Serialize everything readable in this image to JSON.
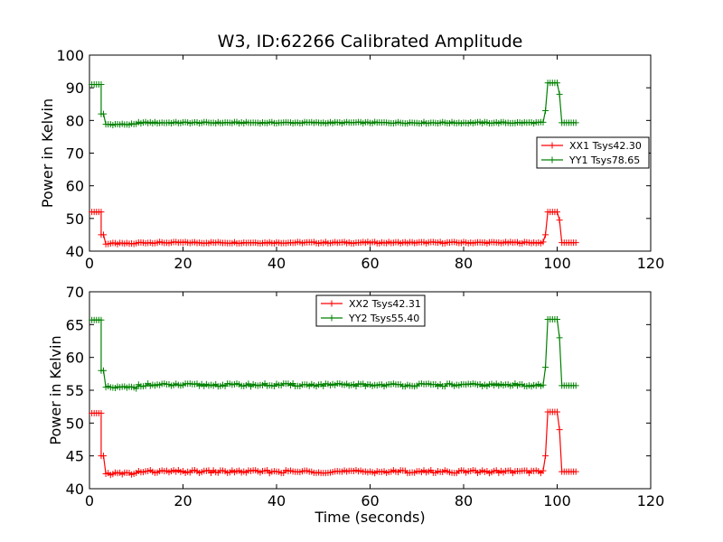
{
  "figure": {
    "title": "W3, ID:62266 Calibrated Amplitude"
  },
  "colors": {
    "xx": "#ff0000",
    "yy": "#008000",
    "axes": "#000000",
    "background": "#ffffff"
  },
  "chart_data": [
    {
      "type": "line",
      "title": "W3, ID:62266 Calibrated Amplitude",
      "xlabel": "",
      "ylabel": "Power in Kelvin",
      "xlim": [
        0,
        120
      ],
      "ylim": [
        40,
        100
      ],
      "xticks": [
        "0",
        "20",
        "40",
        "60",
        "80",
        "100",
        "120"
      ],
      "yticks": [
        "40",
        "50",
        "60",
        "70",
        "80",
        "90",
        "100"
      ],
      "grid": false,
      "marker": "+",
      "legend": {
        "placement": "center-right",
        "entries": [
          "XX1 Tsys42.30",
          "YY1 Tsys78.65"
        ]
      },
      "series": [
        {
          "name": "XX1 Tsys42.30",
          "color": "#ff0000",
          "segments": [
            {
              "x_start": 0.5,
              "x_end": 2.5,
              "value": 52
            },
            {
              "x_start": 2.5,
              "x_end": 3.0,
              "value": 45
            },
            {
              "x_start": 3.5,
              "x_end": 10,
              "value": 42.3
            },
            {
              "x_start": 10.5,
              "x_end": 97,
              "value": 42.6
            },
            {
              "x_start": 97.5,
              "x_end": 97.5,
              "value": 45
            },
            {
              "x_start": 98,
              "x_end": 100,
              "value": 52
            },
            {
              "x_start": 100.5,
              "x_end": 100.5,
              "value": 49.5
            },
            {
              "x_start": 101,
              "x_end": 104,
              "value": 42.6
            }
          ]
        },
        {
          "name": "YY1 Tsys78.65",
          "color": "#008000",
          "segments": [
            {
              "x_start": 0.5,
              "x_end": 2.5,
              "value": 91
            },
            {
              "x_start": 2.5,
              "x_end": 3.0,
              "value": 82
            },
            {
              "x_start": 3.5,
              "x_end": 10,
              "value": 78.8
            },
            {
              "x_start": 10.5,
              "x_end": 97,
              "value": 79.3
            },
            {
              "x_start": 97.5,
              "x_end": 97.5,
              "value": 83
            },
            {
              "x_start": 98,
              "x_end": 100,
              "value": 91.5
            },
            {
              "x_start": 100.5,
              "x_end": 100.5,
              "value": 88
            },
            {
              "x_start": 101,
              "x_end": 104,
              "value": 79.3
            }
          ]
        }
      ]
    },
    {
      "type": "line",
      "title": "",
      "xlabel": "Time (seconds)",
      "ylabel": "Power in Kelvin",
      "xlim": [
        0,
        120
      ],
      "ylim": [
        40,
        70
      ],
      "xticks": [
        "0",
        "20",
        "40",
        "60",
        "80",
        "100",
        "120"
      ],
      "yticks": [
        "40",
        "45",
        "50",
        "55",
        "60",
        "65",
        "70"
      ],
      "grid": false,
      "marker": "+",
      "legend": {
        "placement": "top-center",
        "entries": [
          "XX2 Tsys42.31",
          "YY2 Tsys55.40"
        ]
      },
      "series": [
        {
          "name": "XX2 Tsys42.31",
          "color": "#ff0000",
          "segments": [
            {
              "x_start": 0.5,
              "x_end": 2.5,
              "value": 51.5
            },
            {
              "x_start": 2.5,
              "x_end": 3.0,
              "value": 45
            },
            {
              "x_start": 3.5,
              "x_end": 10,
              "value": 42.3
            },
            {
              "x_start": 10.5,
              "x_end": 97,
              "value": 42.6
            },
            {
              "x_start": 97.5,
              "x_end": 97.5,
              "value": 45
            },
            {
              "x_start": 98,
              "x_end": 100,
              "value": 51.7
            },
            {
              "x_start": 100.5,
              "x_end": 100.5,
              "value": 49
            },
            {
              "x_start": 101,
              "x_end": 104,
              "value": 42.6
            }
          ]
        },
        {
          "name": "YY2 Tsys55.40",
          "color": "#008000",
          "segments": [
            {
              "x_start": 0.5,
              "x_end": 2.5,
              "value": 65.7
            },
            {
              "x_start": 2.5,
              "x_end": 3.0,
              "value": 58
            },
            {
              "x_start": 3.5,
              "x_end": 10,
              "value": 55.4
            },
            {
              "x_start": 10.5,
              "x_end": 97,
              "value": 55.8
            },
            {
              "x_start": 97.5,
              "x_end": 97.5,
              "value": 58.5
            },
            {
              "x_start": 98,
              "x_end": 100,
              "value": 65.8
            },
            {
              "x_start": 100.5,
              "x_end": 100.5,
              "value": 63
            },
            {
              "x_start": 101,
              "x_end": 104,
              "value": 55.7
            }
          ]
        }
      ]
    }
  ]
}
